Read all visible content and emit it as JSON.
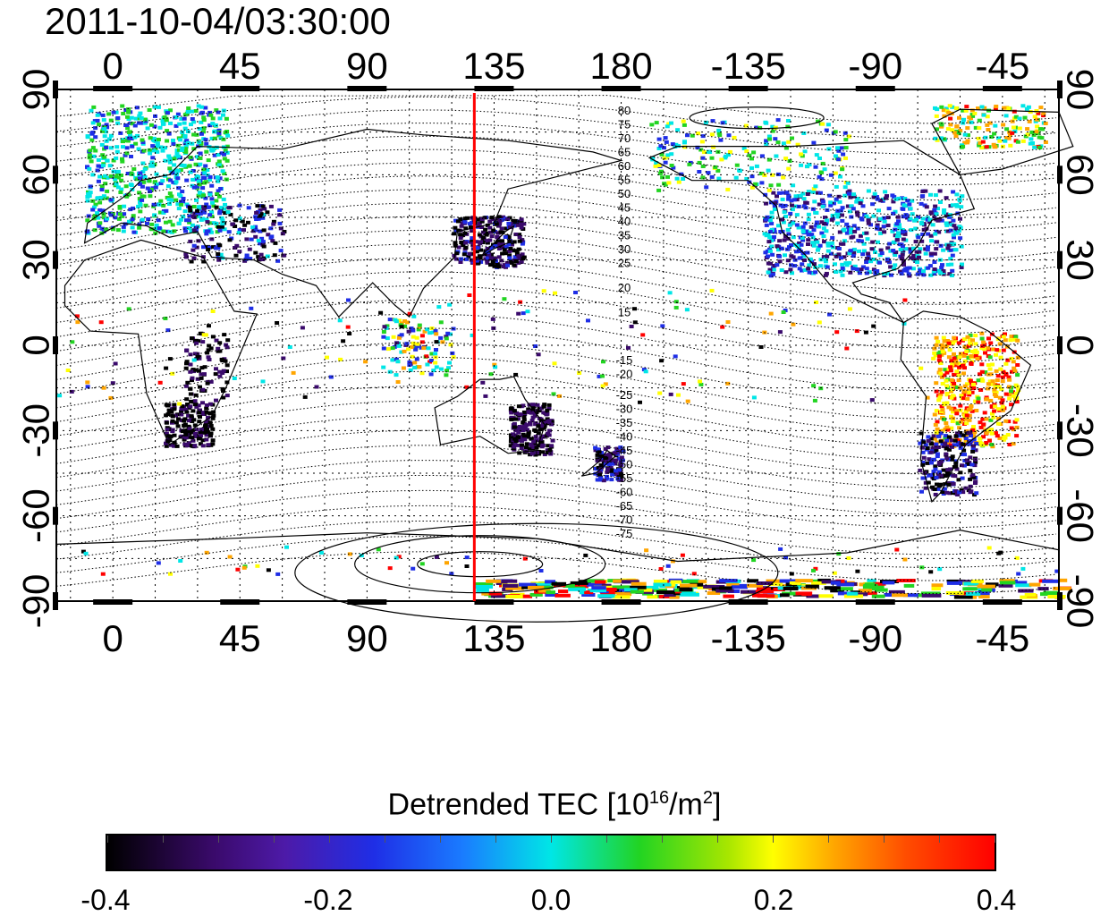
{
  "timestamp": "2011-10-04/03:30:00",
  "map": {
    "top_lon_labels": [
      "0",
      "45",
      "90",
      "135",
      "180",
      "-135",
      "-90",
      "-45"
    ],
    "bottom_lon_labels": [
      "0",
      "45",
      "90",
      "135",
      "180",
      "-135",
      "-90",
      "-45"
    ],
    "left_lat_labels": [
      "90",
      "60",
      "30",
      "0",
      "-30",
      "-60",
      "-90"
    ],
    "right_lat_labels": [
      "90",
      "60",
      "30",
      "0",
      "-30",
      "-60",
      "-90"
    ],
    "lon_values": [
      0,
      45,
      90,
      135,
      180,
      225,
      270,
      315
    ],
    "lat_values": [
      90,
      60,
      30,
      0,
      -30,
      -60,
      -90
    ],
    "lon_range": [
      -20,
      335
    ],
    "lat_range": [
      -90,
      90
    ],
    "grid": true,
    "terminator_longitude": 128,
    "terminator_color": "#ff0000",
    "contour_labels_north": [
      "80",
      "75",
      "70",
      "65",
      "60",
      "55",
      "50",
      "45",
      "40",
      "35",
      "30",
      "25",
      "20",
      "15"
    ],
    "contour_labels_south": [
      "-15",
      "-20",
      "-25",
      "-30",
      "-35",
      "-40",
      "-45",
      "-50",
      "-55",
      "-60",
      "-65",
      "-70",
      "-75"
    ]
  },
  "colorbar": {
    "title_main": "Detrended TEC  [10",
    "title_sup1": "16",
    "title_mid": "/m",
    "title_sup2": "2",
    "title_end": "]",
    "labels": [
      "-0.4",
      "-0.2",
      "0.0",
      "0.2",
      "0.4"
    ],
    "values": [
      -0.4,
      -0.2,
      0.0,
      0.2,
      0.4
    ],
    "range": [
      -0.4,
      0.4
    ],
    "colors": [
      "#000000",
      "#3a0a6b",
      "#1f2ee6",
      "#00e6e6",
      "#22d422",
      "#ffff00",
      "#ffa500",
      "#ff0000"
    ]
  }
}
